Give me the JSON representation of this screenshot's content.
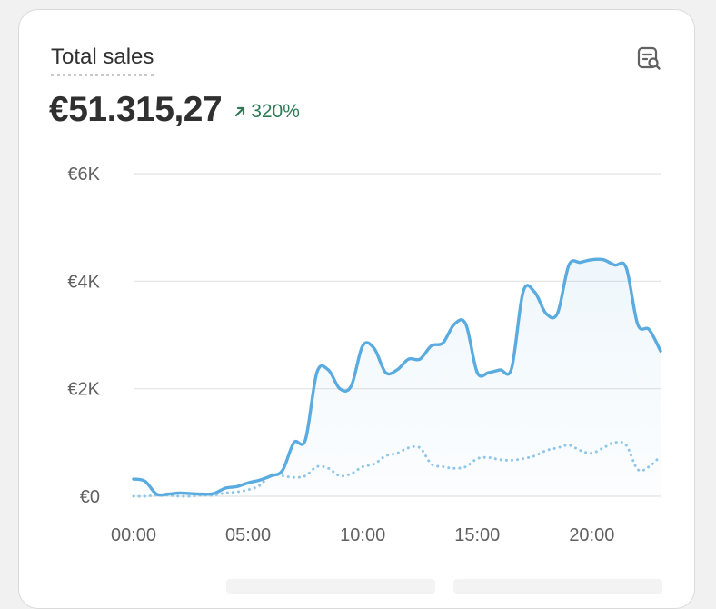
{
  "card": {
    "title": "Total sales",
    "value": "€51.315,27",
    "change": "320%",
    "change_direction": "up",
    "icon": "report-search-icon",
    "accent_color": "#2f7a57"
  },
  "chart_data": {
    "type": "line",
    "title": "Total sales",
    "xlabel": "",
    "ylabel": "",
    "x_tick_labels": [
      "00:00",
      "05:00",
      "10:00",
      "15:00",
      "20:00"
    ],
    "x_tick_hours": [
      0,
      5,
      10,
      15,
      20
    ],
    "xlim": [
      0,
      23
    ],
    "y_tick_labels": [
      "€6K",
      "€4K",
      "€2K",
      "€0"
    ],
    "y_tick_values": [
      6000,
      4000,
      2000,
      0
    ],
    "ylim": [
      0,
      6000
    ],
    "grid": true,
    "series": [
      {
        "style": "solid",
        "color": "#5aabdf",
        "fill": true,
        "x": [
          0,
          0.5,
          1,
          1.5,
          2,
          2.5,
          3,
          3.5,
          4,
          4.5,
          5,
          5.5,
          6,
          6.5,
          7,
          7.5,
          8,
          8.5,
          9,
          9.5,
          10,
          10.5,
          11,
          11.5,
          12,
          12.5,
          13,
          13.5,
          14,
          14.5,
          15,
          15.5,
          16,
          16.5,
          17,
          17.5,
          18,
          18.5,
          19,
          19.5,
          20,
          20.5,
          21,
          21.5,
          22,
          22.5,
          23
        ],
        "values": [
          320,
          280,
          40,
          40,
          60,
          50,
          40,
          50,
          150,
          180,
          250,
          300,
          380,
          480,
          1000,
          1050,
          2300,
          2350,
          2000,
          2050,
          2800,
          2750,
          2300,
          2350,
          2550,
          2550,
          2800,
          2850,
          3200,
          3200,
          2300,
          2300,
          2350,
          2380,
          3800,
          3800,
          3400,
          3400,
          4300,
          4350,
          4400,
          4400,
          4300,
          4250,
          3200,
          3100,
          2700
        ]
      },
      {
        "style": "dotted",
        "color": "#8fc6e8",
        "fill": false,
        "x": [
          0,
          0.5,
          1,
          1.5,
          2,
          2.5,
          3,
          3.5,
          4,
          4.5,
          5,
          5.5,
          6,
          6.5,
          7,
          7.5,
          8,
          8.5,
          9,
          9.5,
          10,
          10.5,
          11,
          11.5,
          12,
          12.5,
          13,
          13.5,
          14,
          14.5,
          15,
          15.5,
          16,
          16.5,
          17,
          17.5,
          18,
          18.5,
          19,
          19.5,
          20,
          20.5,
          21,
          21.5,
          22,
          22.5,
          23
        ],
        "values": [
          0,
          0,
          20,
          20,
          0,
          0,
          20,
          20,
          60,
          80,
          120,
          200,
          400,
          380,
          350,
          380,
          550,
          520,
          380,
          420,
          550,
          600,
          750,
          800,
          900,
          900,
          600,
          550,
          520,
          550,
          700,
          720,
          680,
          670,
          700,
          750,
          850,
          900,
          950,
          850,
          800,
          900,
          1000,
          950,
          500,
          550,
          750
        ]
      }
    ]
  }
}
